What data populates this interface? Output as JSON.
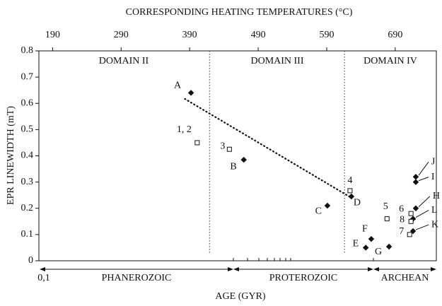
{
  "chart_data": {
    "type": "scatter",
    "top_axis_label": "CORRESPONDING HEATING TEMPERATURES (°C)",
    "y_axis_label": "EPR LINEWIDTH (mT)",
    "x_axis_label": "AGE (GYR)",
    "x_start_label": "0,1",
    "xlim": [
      170,
      750
    ],
    "xticks": [
      190,
      290,
      390,
      490,
      590,
      690
    ],
    "ylim": [
      0,
      0.8
    ],
    "yticks": [
      0,
      0.1,
      0.2,
      0.3,
      0.4,
      0.5,
      0.6,
      0.7,
      0.8
    ],
    "domains": [
      "DOMAIN II",
      "DOMAIN III",
      "DOMAIN IV"
    ],
    "dividers": [
      419,
      616
    ],
    "eras": [
      "PHANEROZOIC",
      "PROTEROZOIC",
      "ARCHEAN"
    ],
    "trend": {
      "x": [
        383,
        626
      ],
      "y": [
        0.617,
        0.24
      ]
    },
    "color": "#111111",
    "points": [
      {
        "label": "A",
        "x": 392,
        "y": 0.64,
        "marker": "filled"
      },
      {
        "label": "1, 2",
        "x": 401,
        "y": 0.45,
        "marker": "open"
      },
      {
        "label": "3",
        "x": 448,
        "y": 0.425,
        "marker": "open"
      },
      {
        "label": "B",
        "x": 469,
        "y": 0.385,
        "marker": "filled"
      },
      {
        "label": "C",
        "x": 591,
        "y": 0.21,
        "marker": "filled"
      },
      {
        "label": "4",
        "x": 624,
        "y": 0.267,
        "marker": "open"
      },
      {
        "label": "D",
        "x": 626,
        "y": 0.245,
        "marker": "filled"
      },
      {
        "label": "5",
        "x": 678,
        "y": 0.16,
        "marker": "open"
      },
      {
        "label": "F",
        "x": 655,
        "y": 0.083,
        "marker": "filled"
      },
      {
        "label": "E",
        "x": 647,
        "y": 0.05,
        "marker": "filled"
      },
      {
        "label": "G",
        "x": 681,
        "y": 0.054,
        "marker": "filled"
      },
      {
        "label": "J",
        "x": 720,
        "y": 0.32,
        "marker": "filled"
      },
      {
        "label": "I",
        "x": 720,
        "y": 0.3,
        "marker": "filled"
      },
      {
        "label": "H",
        "x": 720,
        "y": 0.2,
        "marker": "filled"
      },
      {
        "label": "6",
        "x": 713,
        "y": 0.18,
        "marker": "open"
      },
      {
        "label": "L",
        "x": 716,
        "y": 0.16,
        "marker": "filled"
      },
      {
        "label": "8",
        "x": 713,
        "y": 0.15,
        "marker": "open"
      },
      {
        "label": "K",
        "x": 716,
        "y": 0.113,
        "marker": "filled"
      },
      {
        "label": "7",
        "x": 711,
        "y": 0.1,
        "marker": "open"
      }
    ]
  }
}
